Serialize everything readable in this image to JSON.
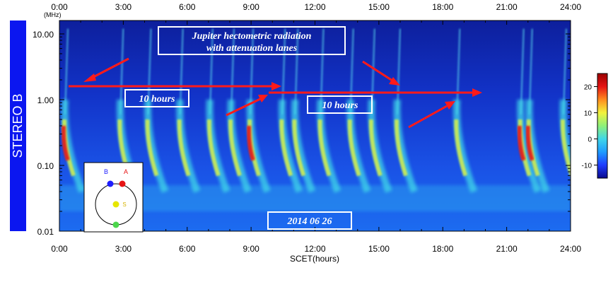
{
  "chart_data": {
    "type": "heatmap",
    "title": "",
    "spacecraft_label": "STEREO B",
    "xlabel": "SCET(hours)",
    "ylabel_unit": "(MHz)",
    "x_range_hours": [
      0,
      24
    ],
    "x_ticks": [
      "0:00",
      "3:00",
      "6:00",
      "9:00",
      "12:00",
      "15:00",
      "18:00",
      "21:00",
      "24:00"
    ],
    "y_scale": "log",
    "y_range_mhz": [
      0.01,
      16
    ],
    "y_ticks": [
      "10.00",
      "1.00",
      "0.10",
      "0.01"
    ],
    "colorbar": {
      "range": [
        -15,
        25
      ],
      "ticks": [
        "20",
        "10",
        "0",
        "-10"
      ],
      "colors": [
        "#0a0a8c",
        "#1e3cff",
        "#1e9bff",
        "#3fd6e8",
        "#8ef07a",
        "#f2f23c",
        "#ff8c1e",
        "#e61414",
        "#9a0000"
      ]
    },
    "burst_times_hours": [
      0.2,
      2.8,
      4.1,
      5.6,
      7.0,
      8.0,
      8.9,
      10.4,
      11.0,
      12.2,
      13.6,
      14.6,
      15.8,
      18.6,
      21.6,
      22.0,
      23.6
    ],
    "annotations": {
      "title_box": [
        "Jupiter hectometric radiation",
        "with attenuation lanes"
      ],
      "interval_label_1": "10 hours",
      "interval_label_2": "10 hours",
      "date": "2014 06 26"
    },
    "inset": {
      "labels": [
        "B",
        "A",
        "S"
      ],
      "colors": {
        "B": "#1e1eff",
        "A": "#e61414",
        "S": "#e6e600",
        "E": "#4cd64c"
      }
    },
    "arrow_color": "#ff1a1a"
  }
}
